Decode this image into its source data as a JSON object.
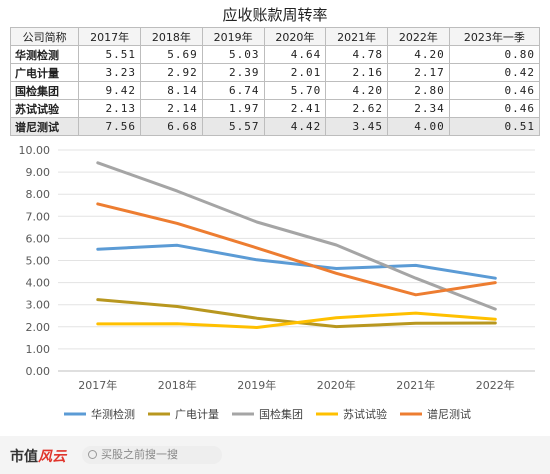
{
  "chart_data": {
    "type": "line",
    "title": "应收账款周转率",
    "table": {
      "headers": [
        "公司简称",
        "2017年",
        "2018年",
        "2019年",
        "2020年",
        "2021年",
        "2022年",
        "2023年一季"
      ],
      "rows": [
        {
          "name": "华测检测",
          "values": [
            "5.51",
            "5.69",
            "5.03",
            "4.64",
            "4.78",
            "4.20",
            "0.80"
          ]
        },
        {
          "name": "广电计量",
          "values": [
            "3.23",
            "2.92",
            "2.39",
            "2.01",
            "2.16",
            "2.17",
            "0.42"
          ]
        },
        {
          "name": "国检集团",
          "values": [
            "9.42",
            "8.14",
            "6.74",
            "5.70",
            "4.20",
            "2.80",
            "0.46"
          ]
        },
        {
          "name": "苏试试验",
          "values": [
            "2.13",
            "2.14",
            "1.97",
            "2.41",
            "2.62",
            "2.34",
            "0.46"
          ]
        },
        {
          "name": "谱尼测试",
          "values": [
            "7.56",
            "6.68",
            "5.57",
            "4.42",
            "3.45",
            "4.00",
            "0.51"
          ]
        }
      ]
    },
    "categories": [
      "2017年",
      "2018年",
      "2019年",
      "2020年",
      "2021年",
      "2022年"
    ],
    "yticks": [
      "0.00",
      "1.00",
      "2.00",
      "3.00",
      "4.00",
      "5.00",
      "6.00",
      "7.00",
      "8.00",
      "9.00",
      "10.00"
    ],
    "ylim": [
      0,
      10
    ],
    "grid": true,
    "legend_position": "bottom",
    "series": [
      {
        "name": "华测检测",
        "color": "#5b9bd5",
        "values": [
          5.51,
          5.69,
          5.03,
          4.64,
          4.78,
          4.2
        ]
      },
      {
        "name": "广电计量",
        "color": "#b8971f",
        "values": [
          3.23,
          2.92,
          2.39,
          2.01,
          2.16,
          2.17
        ]
      },
      {
        "name": "国检集团",
        "color": "#a5a5a5",
        "values": [
          9.42,
          8.14,
          6.74,
          5.7,
          4.2,
          2.8
        ]
      },
      {
        "name": "苏试试验",
        "color": "#ffc000",
        "values": [
          2.13,
          2.14,
          1.97,
          2.41,
          2.62,
          2.34
        ]
      },
      {
        "name": "谱尼测试",
        "color": "#ed7d31",
        "values": [
          7.56,
          6.68,
          5.57,
          4.42,
          3.45,
          4.0
        ]
      }
    ]
  },
  "footer": {
    "logo_main": "市值",
    "logo_accent": "风云",
    "search_placeholder": "买股之前搜一搜",
    "search_icon": "search-icon"
  }
}
